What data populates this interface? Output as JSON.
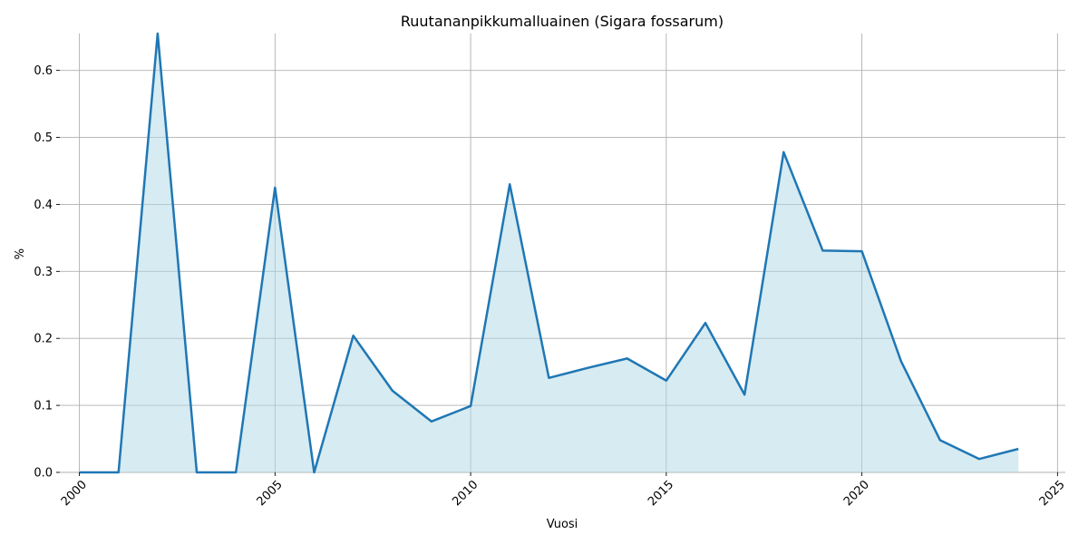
{
  "chart_data": {
    "type": "area",
    "title": "Ruutananpikkumalluainen (Sigara fossarum)",
    "xlabel": "Vuosi",
    "ylabel": "%",
    "x": [
      2000,
      2001,
      2002,
      2003,
      2004,
      2005,
      2006,
      2007,
      2008,
      2009,
      2010,
      2011,
      2012,
      2013,
      2014,
      2015,
      2016,
      2017,
      2018,
      2019,
      2020,
      2021,
      2022,
      2023,
      2024
    ],
    "series": [
      {
        "values": [
          0.0,
          0.0,
          0.655,
          0.0,
          0.0,
          0.425,
          0.0,
          0.204,
          0.122,
          0.076,
          0.099,
          0.43,
          0.141,
          0.156,
          0.17,
          0.137,
          0.223,
          0.116,
          0.478,
          0.331,
          0.33,
          0.166,
          0.048,
          0.02,
          0.035
        ],
        "color": "#1f77b4",
        "fill": "#add8e6"
      }
    ],
    "xticks": [
      "2000",
      "2005",
      "2010",
      "2015",
      "2020",
      "2025"
    ],
    "yticks": [
      "0.0",
      "0.1",
      "0.2",
      "0.3",
      "0.4",
      "0.5",
      "0.6"
    ],
    "xlim": [
      1999.5,
      2025.2
    ],
    "ylim": [
      0,
      0.655
    ],
    "grid": true
  }
}
